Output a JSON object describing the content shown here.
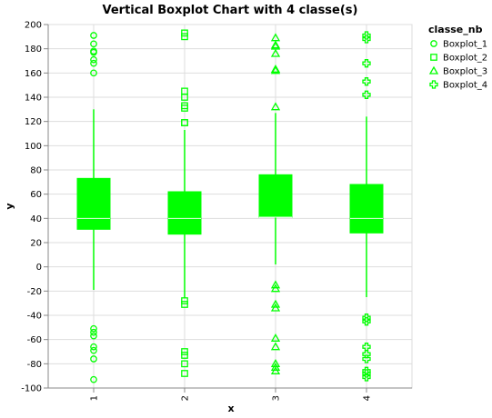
{
  "chart_data": {
    "type": "boxplot",
    "title": "Vertical Boxplot Chart with 4 classe(s)",
    "xlabel": "x",
    "ylabel": "y",
    "ylim": [
      -100,
      200
    ],
    "y_ticks": [
      -100,
      -80,
      -60,
      -40,
      -20,
      0,
      20,
      40,
      60,
      80,
      100,
      120,
      140,
      160,
      180,
      200
    ],
    "categories": [
      "1",
      "2",
      "3",
      "4"
    ],
    "color": "#00ff00",
    "grid": true,
    "legend": {
      "title": "classe_nb",
      "position": "right",
      "entries": [
        {
          "label": "Boxplot_1",
          "shape": "circle"
        },
        {
          "label": "Boxplot_2",
          "shape": "square"
        },
        {
          "label": "Boxplot_3",
          "shape": "triangle"
        },
        {
          "label": "Boxplot_4",
          "shape": "cross"
        }
      ]
    },
    "series": [
      {
        "category": "1",
        "shape": "circle",
        "whisker_low": -19,
        "q1": 31,
        "median": 40,
        "q3": 73,
        "whisker_high": 130,
        "outliers": [
          191,
          184,
          178,
          177,
          171,
          168,
          160,
          -51,
          -54,
          -57,
          -66,
          -69,
          -76,
          -93
        ]
      },
      {
        "category": "2",
        "shape": "square",
        "whisker_low": -26,
        "q1": 27,
        "median": 40,
        "q3": 62,
        "whisker_high": 113,
        "outliers": [
          193,
          190,
          145,
          140,
          133,
          131,
          119,
          119,
          -28,
          -31,
          -70,
          -73,
          -80,
          -88
        ]
      },
      {
        "category": "3",
        "shape": "triangle",
        "whisker_low": 2,
        "q1": 41,
        "median": 41,
        "q3": 76,
        "whisker_high": 127,
        "outliers": [
          189,
          183,
          182,
          176,
          163,
          162,
          132,
          -15,
          -18,
          -31,
          -34,
          -59,
          -66,
          -80,
          -83,
          -86
        ]
      },
      {
        "category": "4",
        "shape": "cross",
        "whisker_low": -25,
        "q1": 28,
        "median": 40,
        "q3": 68,
        "whisker_high": 124,
        "outliers": [
          191,
          188,
          168,
          153,
          142,
          -42,
          -45,
          -66,
          -72,
          -76,
          -86,
          -88,
          -91
        ]
      }
    ]
  }
}
